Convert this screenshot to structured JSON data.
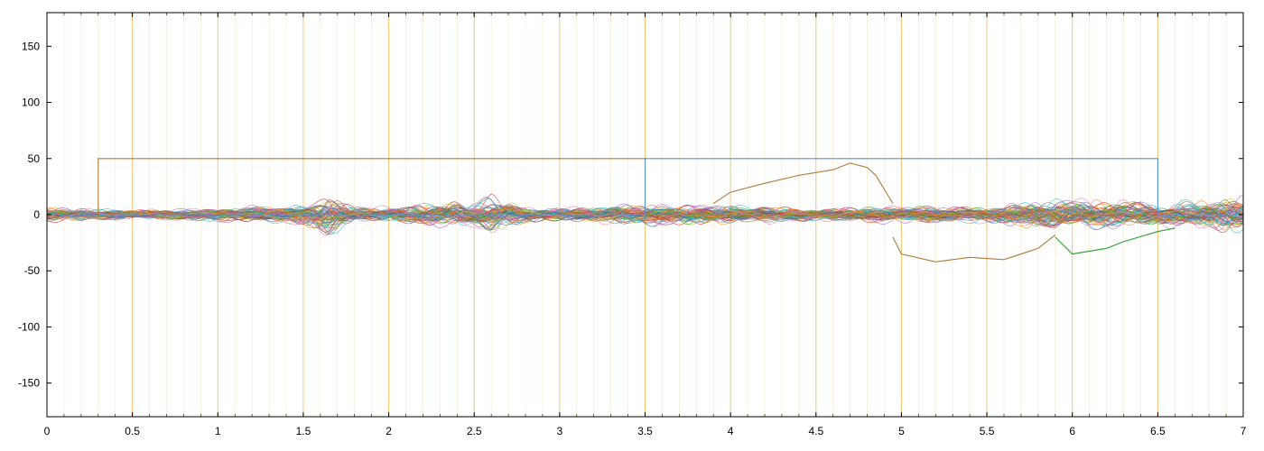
{
  "chart_data": {
    "type": "line",
    "title": "",
    "xlabel": "",
    "ylabel": "",
    "xlim": [
      0,
      7
    ],
    "ylim": [
      -180,
      180
    ],
    "x_ticks": [
      "0",
      "0.5",
      "1",
      "1.5",
      "2",
      "2.5",
      "3",
      "3.5",
      "4",
      "4.5",
      "5",
      "5.5",
      "6",
      "6.5",
      "7"
    ],
    "y_ticks": [
      "150",
      "100",
      "50",
      "0",
      "-50",
      "-100",
      "-150"
    ],
    "x_tick_values": [
      0,
      0.5,
      1,
      1.5,
      2,
      2.5,
      3,
      3.5,
      4,
      4.5,
      5,
      5.5,
      6,
      6.5,
      7
    ],
    "y_tick_values": [
      150,
      100,
      50,
      0,
      -50,
      -100,
      -150
    ],
    "grid": {
      "major_vertical_every": 0.5,
      "minor_vertical_every": 0.1,
      "color": "#f5b041",
      "horizontal": false
    },
    "legend": "none",
    "trace_colors": [
      "#d62728",
      "#1f77b4",
      "#2ca02c",
      "#8c564b",
      "#17becf",
      "#9467bd",
      "#7f7f7f",
      "#bcbd22",
      "#e377c2",
      "#ff7f0e"
    ],
    "trace_count_estimate": 70,
    "trace_amplitude_by_x": [
      [
        0,
        8
      ],
      [
        0.5,
        5
      ],
      [
        1.0,
        7
      ],
      [
        1.5,
        12
      ],
      [
        1.65,
        22
      ],
      [
        1.8,
        9
      ],
      [
        2.0,
        8
      ],
      [
        2.5,
        16
      ],
      [
        2.6,
        22
      ],
      [
        2.8,
        8
      ],
      [
        3.0,
        7
      ],
      [
        3.5,
        12
      ],
      [
        4.0,
        10
      ],
      [
        4.5,
        7
      ],
      [
        5.0,
        9
      ],
      [
        5.5,
        9
      ],
      [
        5.8,
        15
      ],
      [
        6.0,
        18
      ],
      [
        6.5,
        12
      ],
      [
        7.0,
        20
      ]
    ],
    "series": [
      {
        "name": "",
        "color": "#b07a3a",
        "x": [
          0,
          0.3,
          0.3,
          3.5,
          3.5,
          7
        ],
        "y": [
          0,
          0,
          50,
          50,
          0,
          0
        ]
      },
      {
        "name": "",
        "color": "#5b8fd6",
        "x": [
          0,
          3.5,
          3.5,
          6.5,
          6.5,
          7
        ],
        "y": [
          0,
          0,
          50,
          50,
          0,
          0
        ]
      },
      {
        "name": "",
        "color": "#b07a3a",
        "x": [
          3.9,
          4.0,
          4.2,
          4.4,
          4.6,
          4.7,
          4.8,
          4.85,
          4.95
        ],
        "y": [
          10,
          20,
          28,
          35,
          40,
          46,
          42,
          35,
          10
        ]
      },
      {
        "name": "",
        "color": "#b07a3a",
        "x": [
          4.95,
          5.0,
          5.2,
          5.4,
          5.6,
          5.8,
          5.9
        ],
        "y": [
          -20,
          -35,
          -42,
          -38,
          -40,
          -30,
          -18
        ]
      },
      {
        "name": "",
        "color": "#2ca02c",
        "x": [
          5.9,
          6.0,
          6.2,
          6.3,
          6.5,
          6.6
        ],
        "y": [
          -20,
          -35,
          -30,
          -24,
          -15,
          -12
        ]
      }
    ]
  }
}
